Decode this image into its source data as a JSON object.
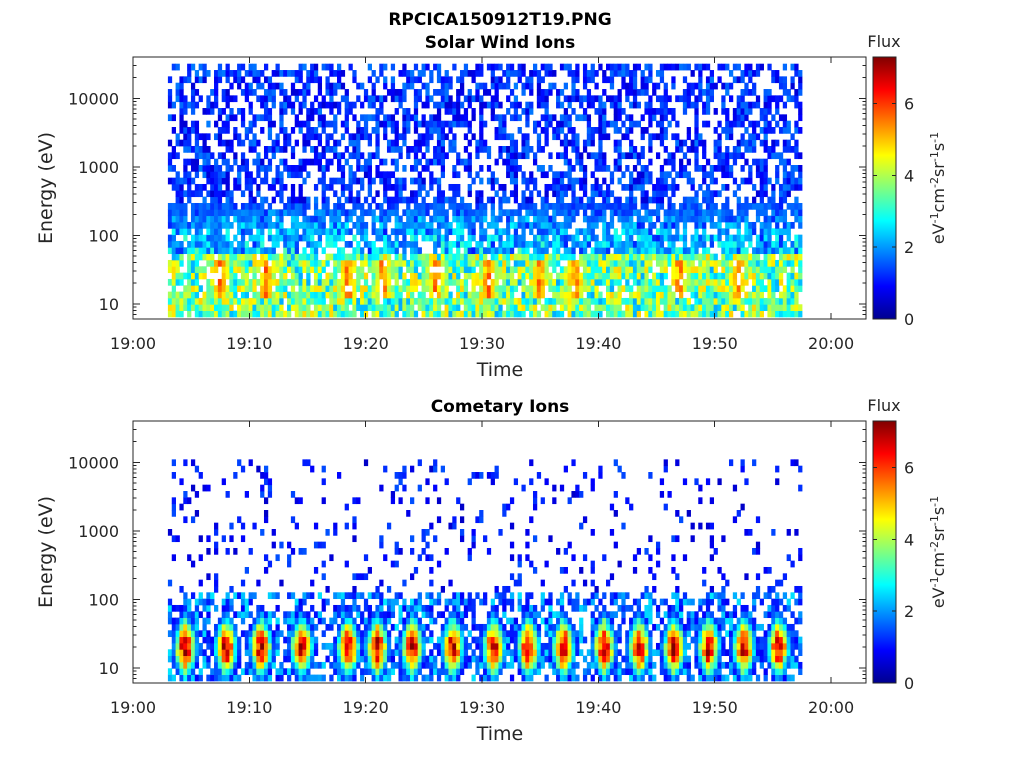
{
  "figure": {
    "title": "RPCICA150912T19.PNG"
  },
  "chart_data": [
    {
      "type": "heatmap",
      "title": "Solar Wind Ions",
      "xlabel": "Time",
      "ylabel": "Energy (eV)",
      "x_tick_labels": [
        "19:00",
        "19:10",
        "19:20",
        "19:30",
        "19:40",
        "19:50",
        "20:00"
      ],
      "y_tick_labels": [
        "10",
        "100",
        "1000",
        "10000"
      ],
      "y_tick_values": [
        10,
        100,
        1000,
        10000
      ],
      "y_scale": "log",
      "ylim": [
        6,
        40000
      ],
      "xlim_minutes": [
        0,
        63
      ],
      "data_time_range_minutes": [
        3,
        57.5
      ],
      "colorbar": {
        "label": "Flux",
        "unit_label": "eV-1cm-2sr-1s-1",
        "clim": [
          0,
          7.3
        ],
        "tick_values": [
          0,
          2,
          4,
          6
        ],
        "tick_labels": [
          "0",
          "2",
          "4",
          "6"
        ],
        "colormap": "jet"
      },
      "features": {
        "low_energy_band_eV": [
          8,
          60
        ],
        "low_energy_level": 3.5,
        "peak_times_minutes": [
          7.5,
          11.5,
          18.5,
          21.5,
          26,
          30.5,
          35,
          38,
          47,
          52
        ],
        "peak_level": 5.2,
        "high_energy_level": 1.2,
        "high_energy_density": 0.55
      }
    },
    {
      "type": "heatmap",
      "title": "Cometary Ions",
      "xlabel": "Time",
      "ylabel": "Energy (eV)",
      "x_tick_labels": [
        "19:00",
        "19:10",
        "19:20",
        "19:30",
        "19:40",
        "19:50",
        "20:00"
      ],
      "y_tick_labels": [
        "10",
        "100",
        "1000",
        "10000"
      ],
      "y_tick_values": [
        10,
        100,
        1000,
        10000
      ],
      "y_scale": "log",
      "ylim": [
        6,
        40000
      ],
      "xlim_minutes": [
        0,
        63
      ],
      "data_time_range_minutes": [
        3,
        57.5
      ],
      "colorbar": {
        "label": "Flux",
        "unit_label": "eV-1cm-2sr-1s-1",
        "clim": [
          0,
          7.3
        ],
        "tick_values": [
          0,
          2,
          4,
          6
        ],
        "tick_labels": [
          "0",
          "2",
          "4",
          "6"
        ],
        "colormap": "jet"
      },
      "features": {
        "burst_times_minutes": [
          4.5,
          8,
          11,
          14.5,
          18.5,
          21,
          24,
          27.5,
          31,
          34,
          37,
          40.5,
          43.5,
          46.5,
          49.5,
          52.5,
          55.5
        ],
        "burst_peak_level": 6.8,
        "burst_center_eV": 20,
        "burst_spread_decades": 0.45,
        "high_energy_level": 1.0,
        "high_energy_density": 0.12
      }
    }
  ]
}
